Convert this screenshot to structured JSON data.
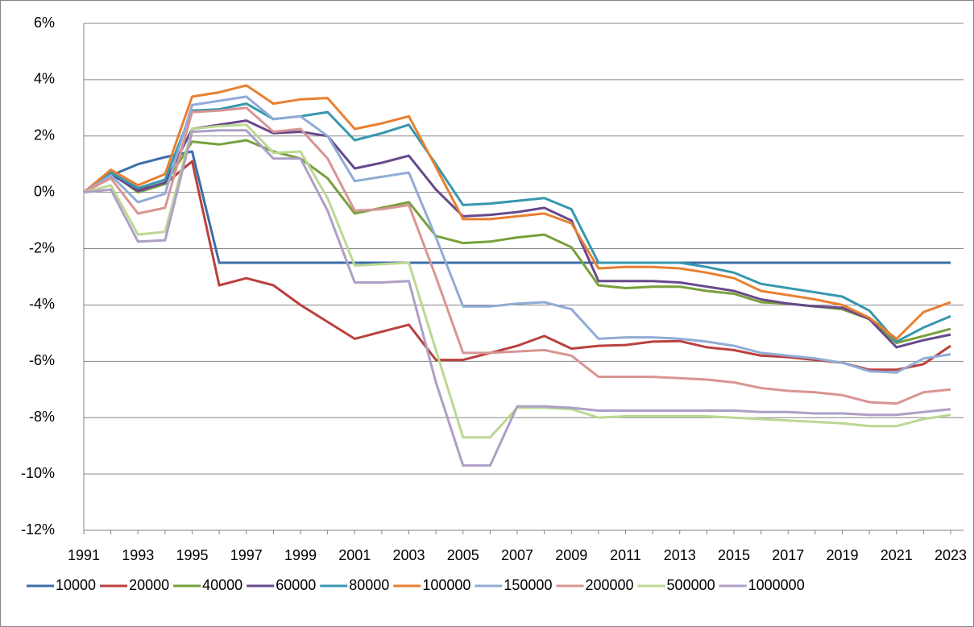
{
  "chart_data": {
    "type": "line",
    "categories": [
      "1991",
      null,
      "1993",
      null,
      "1995",
      null,
      "1997",
      null,
      "1999",
      null,
      "2001",
      null,
      "2003",
      null,
      "2005",
      null,
      "2007",
      null,
      "2009",
      null,
      "2011",
      null,
      "2013",
      null,
      "2015",
      null,
      "2017",
      null,
      "2019",
      null,
      "2021",
      null,
      "2023"
    ],
    "ylim": [
      -12,
      6
    ],
    "yticks": [
      {
        "value": -12,
        "label": "-12%"
      },
      {
        "value": -10,
        "label": "-10%"
      },
      {
        "value": -8,
        "label": "-8%"
      },
      {
        "value": -6,
        "label": "-6%"
      },
      {
        "value": -4,
        "label": "-4%"
      },
      {
        "value": -2,
        "label": "-2%"
      },
      {
        "value": 0,
        "label": "0%"
      },
      {
        "value": 2,
        "label": "2%"
      },
      {
        "value": 4,
        "label": "4%"
      },
      {
        "value": 6,
        "label": "6%"
      }
    ],
    "grid": true,
    "legend": "bottom",
    "series": [
      {
        "name": "10000",
        "color": "#3c6ea8",
        "values": [
          0,
          0.6,
          1.0,
          1.25,
          1.45,
          -2.5,
          -2.5,
          -2.5,
          -2.5,
          -2.5,
          -2.5,
          -2.5,
          -2.5,
          -2.5,
          -2.5,
          -2.5,
          -2.5,
          -2.5,
          -2.5,
          -2.5,
          -2.5,
          -2.5,
          -2.5,
          -2.5,
          -2.5,
          -2.5,
          -2.5,
          -2.5,
          -2.5,
          -2.5,
          -2.5,
          -2.5,
          -2.5
        ]
      },
      {
        "name": "20000",
        "color": "#b9413e",
        "values": [
          0,
          0.7,
          0.1,
          0.3,
          1.1,
          -3.3,
          -3.05,
          -3.3,
          -4.0,
          -4.6,
          -5.2,
          -4.95,
          -4.7,
          -5.95,
          -5.95,
          -5.7,
          -5.45,
          -5.1,
          -5.55,
          -5.45,
          -5.42,
          -5.3,
          -5.28,
          -5.5,
          -5.6,
          -5.8,
          -5.85,
          -5.95,
          -6.05,
          -6.3,
          -6.3,
          -6.1,
          -5.45
        ]
      },
      {
        "name": "40000",
        "color": "#77a03b",
        "values": [
          0,
          0.7,
          0.0,
          0.3,
          1.8,
          1.7,
          1.85,
          1.45,
          1.2,
          0.5,
          -0.75,
          -0.55,
          -0.35,
          -1.55,
          -1.8,
          -1.75,
          -1.6,
          -1.5,
          -1.95,
          -3.3,
          -3.4,
          -3.35,
          -3.35,
          -3.5,
          -3.6,
          -3.9,
          -3.95,
          -4.05,
          -4.15,
          -4.5,
          -5.35,
          -5.1,
          -4.85
        ]
      },
      {
        "name": "60000",
        "color": "#67498c",
        "values": [
          0,
          0.65,
          0.05,
          0.35,
          2.25,
          2.4,
          2.55,
          2.1,
          2.15,
          2.0,
          0.85,
          1.05,
          1.3,
          0.1,
          -0.85,
          -0.8,
          -0.7,
          -0.55,
          -1.0,
          -3.15,
          -3.15,
          -3.15,
          -3.2,
          -3.35,
          -3.5,
          -3.8,
          -3.95,
          -4.05,
          -4.1,
          -4.5,
          -5.5,
          -5.25,
          -5.05
        ]
      },
      {
        "name": "80000",
        "color": "#3697ae",
        "values": [
          0,
          0.7,
          0.15,
          0.45,
          2.9,
          2.95,
          3.15,
          2.6,
          2.7,
          2.85,
          1.85,
          2.1,
          2.4,
          1.0,
          -0.45,
          -0.4,
          -0.3,
          -0.2,
          -0.6,
          -2.5,
          -2.5,
          -2.5,
          -2.5,
          -2.65,
          -2.85,
          -3.25,
          -3.4,
          -3.55,
          -3.7,
          -4.2,
          -5.3,
          -4.8,
          -4.4
        ]
      },
      {
        "name": "100000",
        "color": "#e97f30",
        "values": [
          0,
          0.8,
          0.25,
          0.65,
          3.4,
          3.55,
          3.8,
          3.15,
          3.3,
          3.35,
          2.25,
          2.45,
          2.7,
          0.9,
          -0.95,
          -0.95,
          -0.85,
          -0.75,
          -1.1,
          -2.7,
          -2.65,
          -2.65,
          -2.7,
          -2.85,
          -3.05,
          -3.5,
          -3.65,
          -3.8,
          -4.0,
          -4.45,
          -5.2,
          -4.25,
          -3.9
        ]
      },
      {
        "name": "150000",
        "color": "#90acd6",
        "values": [
          0,
          0.6,
          -0.35,
          -0.05,
          3.1,
          3.25,
          3.4,
          2.6,
          2.7,
          2.0,
          0.4,
          0.55,
          0.7,
          -1.6,
          -4.05,
          -4.05,
          -3.95,
          -3.9,
          -4.15,
          -5.2,
          -5.15,
          -5.15,
          -5.2,
          -5.3,
          -5.45,
          -5.7,
          -5.8,
          -5.9,
          -6.05,
          -6.35,
          -6.4,
          -5.9,
          -5.75
        ]
      },
      {
        "name": "200000",
        "color": "#d89593",
        "values": [
          0,
          0.5,
          -0.75,
          -0.55,
          2.85,
          2.9,
          3.0,
          2.15,
          2.25,
          1.2,
          -0.65,
          -0.6,
          -0.45,
          -3.0,
          -5.7,
          -5.7,
          -5.65,
          -5.6,
          -5.8,
          -6.55,
          -6.55,
          -6.55,
          -6.6,
          -6.65,
          -6.75,
          -6.95,
          -7.05,
          -7.1,
          -7.2,
          -7.45,
          -7.5,
          -7.1,
          -7.0
        ]
      },
      {
        "name": "500000",
        "color": "#bcd893",
        "values": [
          0,
          0.25,
          -1.5,
          -1.4,
          2.25,
          2.35,
          2.4,
          1.4,
          1.45,
          -0.2,
          -2.6,
          -2.55,
          -2.5,
          -5.6,
          -8.7,
          -8.7,
          -7.65,
          -7.65,
          -7.7,
          -8.0,
          -7.95,
          -7.95,
          -7.95,
          -7.95,
          -8.0,
          -8.05,
          -8.1,
          -8.15,
          -8.2,
          -8.3,
          -8.3,
          -8.05,
          -7.9
        ]
      },
      {
        "name": "1000000",
        "color": "#ad9fc6",
        "values": [
          0,
          0.1,
          -1.75,
          -1.7,
          2.15,
          2.2,
          2.2,
          1.2,
          1.2,
          -0.65,
          -3.2,
          -3.2,
          -3.15,
          -6.75,
          -9.7,
          -9.7,
          -7.6,
          -7.6,
          -7.65,
          -7.75,
          -7.75,
          -7.75,
          -7.75,
          -7.75,
          -7.75,
          -7.8,
          -7.8,
          -7.85,
          -7.85,
          -7.9,
          -7.9,
          -7.8,
          -7.7
        ]
      }
    ]
  }
}
